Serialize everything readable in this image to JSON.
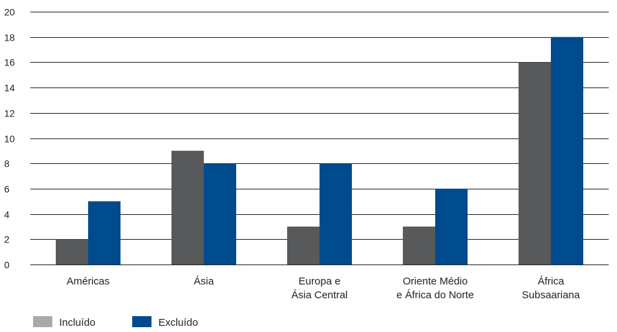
{
  "chart_data": {
    "type": "bar",
    "categories": [
      [
        "Américas"
      ],
      [
        "Ásia"
      ],
      [
        "Europa e",
        "Ásia Central"
      ],
      [
        "Oriente Médio",
        "e África do Norte"
      ],
      [
        "África",
        "Subsaariana"
      ]
    ],
    "series": [
      {
        "name": "Incluído",
        "color": "#58595b",
        "legend_color": "#a7a9ac",
        "values": [
          2,
          9,
          3,
          3,
          16
        ]
      },
      {
        "name": "Excluído",
        "color": "#004b8d",
        "legend_color": "#004b8d",
        "values": [
          5,
          8,
          8,
          6,
          18
        ]
      }
    ],
    "ylim": [
      0,
      20
    ],
    "yticks": [
      "0",
      "2",
      "4",
      "6",
      "8",
      "10",
      "12",
      "14",
      "16",
      "18",
      "20"
    ],
    "grid": true,
    "legend_position": "bottom-left"
  }
}
